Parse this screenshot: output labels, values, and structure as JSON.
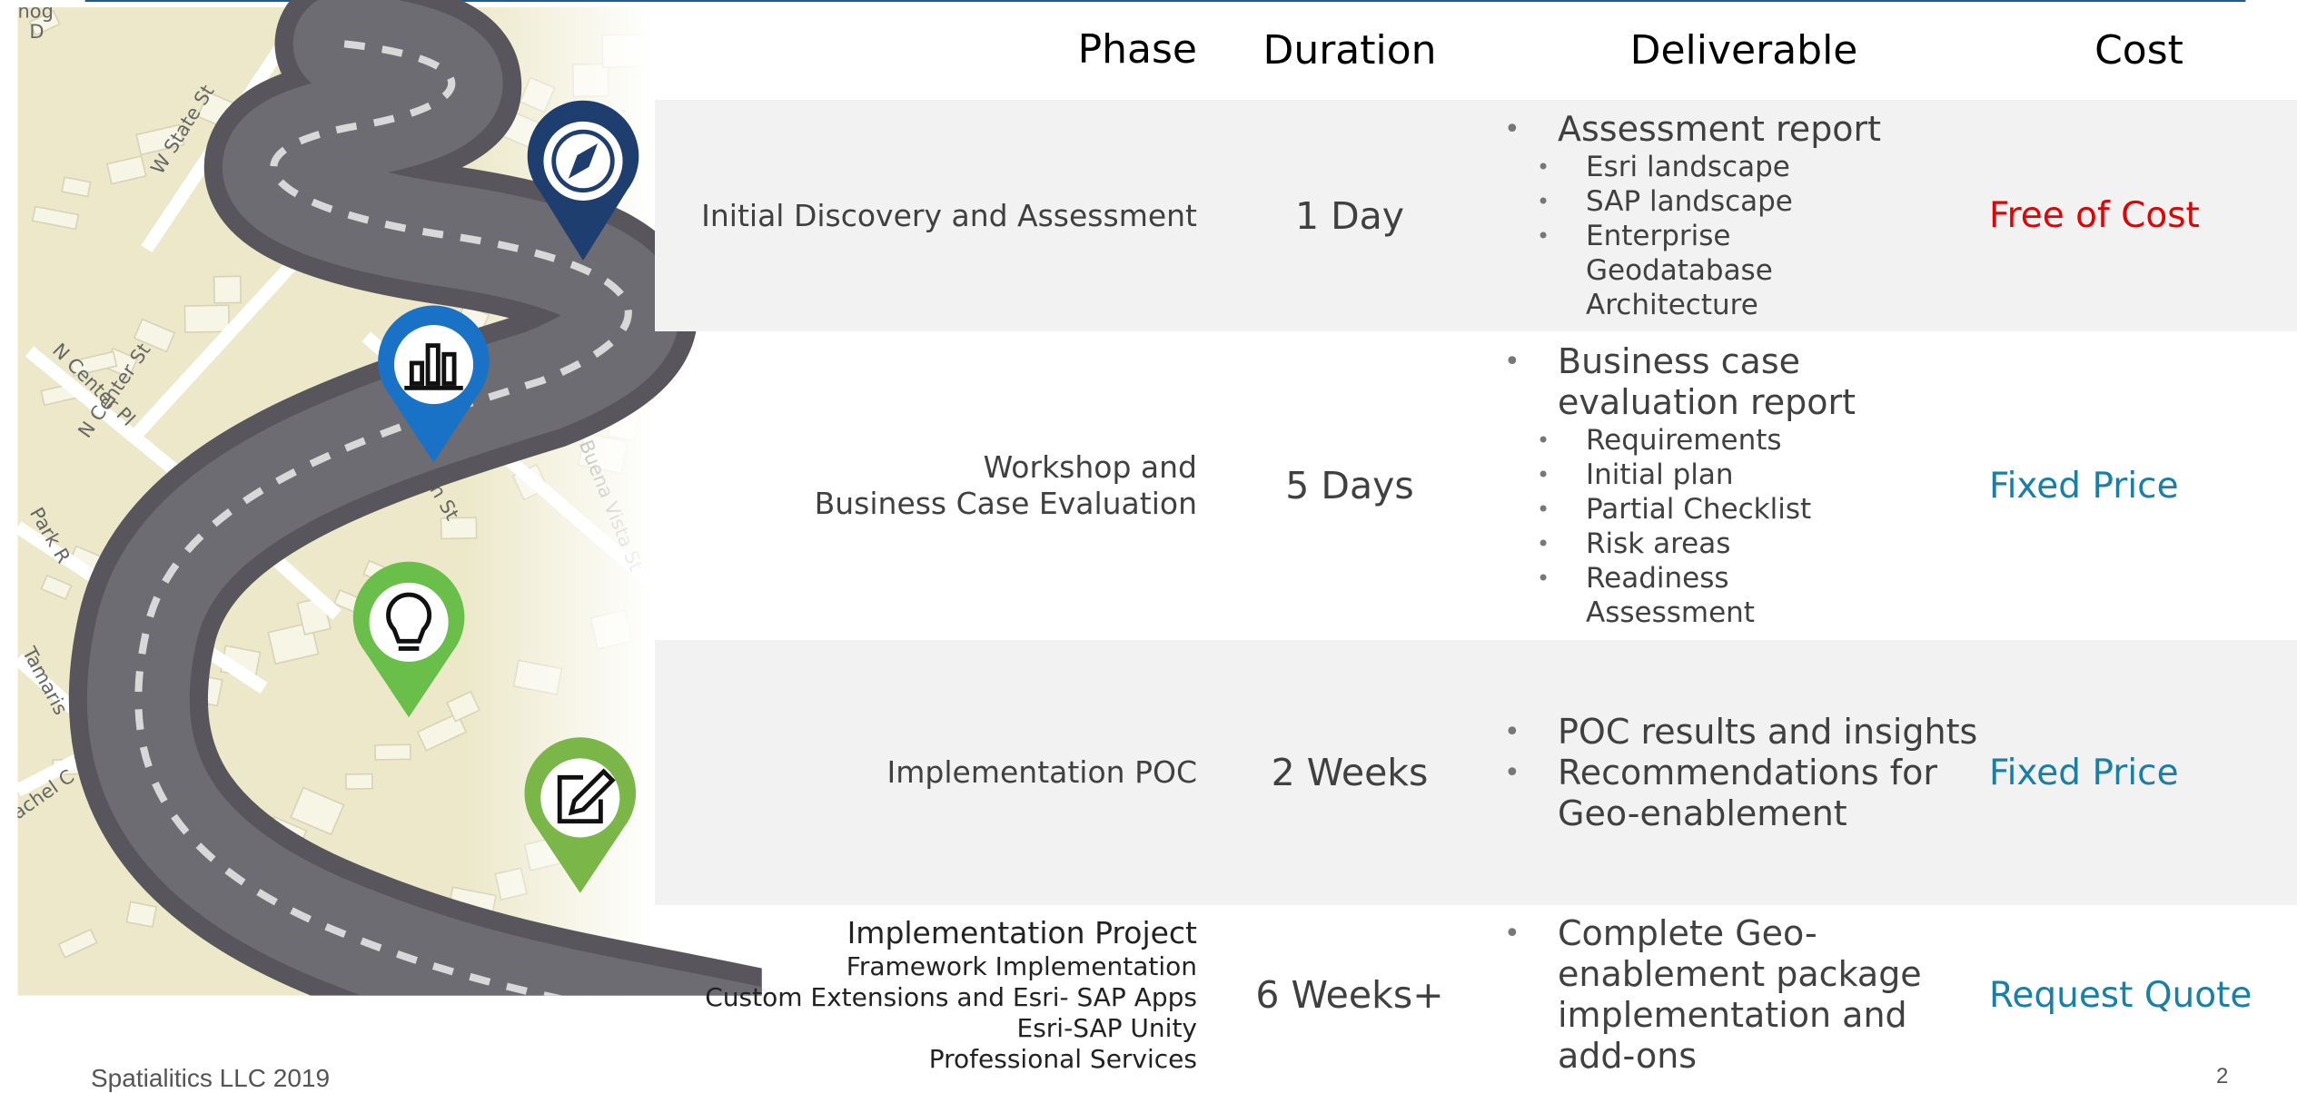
{
  "header": {
    "columns": [
      "Phase",
      "Duration",
      "Deliverable",
      "Cost"
    ]
  },
  "map": {
    "labels": [
      "W State St",
      "N Center St",
      "N Center Pl",
      "Park R",
      "Tamaris",
      "achel C",
      "N Buena Vista St",
      "gan St",
      "nog",
      "D"
    ]
  },
  "table": {
    "rows": [
      {
        "phase": [
          "Initial Discovery and Assessment"
        ],
        "duration": "1 Day",
        "deliverables": [
          {
            "text": "Assessment report",
            "items": [
              "Esri landscape",
              "SAP landscape",
              "Enterprise Geodatabase Architecture"
            ]
          }
        ],
        "cost": "Free of Cost"
      },
      {
        "phase": [
          "Workshop and",
          "Business Case Evaluation"
        ],
        "duration": "5 Days",
        "deliverables": [
          {
            "text": "Business case evaluation report",
            "items": [
              "Requirements",
              "Initial plan",
              "Partial Checklist",
              "Risk areas",
              "Readiness Assessment"
            ]
          }
        ],
        "cost": "Fixed Price"
      },
      {
        "phase": [
          "Implementation POC"
        ],
        "duration": "2 Weeks",
        "deliverables": [
          {
            "text": "POC results and insights",
            "items": []
          },
          {
            "text": "Recommendations for Geo-enablement",
            "items": []
          }
        ],
        "cost": "Fixed Price"
      },
      {
        "phase": [
          "Implementation Project",
          "Framework Implementation",
          "Custom Extensions and Esri- SAP Apps",
          "Esri-SAP Unity",
          "Professional Services"
        ],
        "duration": "6 Weeks+",
        "deliverables": [
          {
            "text": "Complete Geo-enablement package implementation and add-ons",
            "items": []
          }
        ],
        "cost": "Request Quote"
      }
    ]
  },
  "footer": {
    "company": "Spatialitics LLC 2019",
    "page": "2"
  }
}
